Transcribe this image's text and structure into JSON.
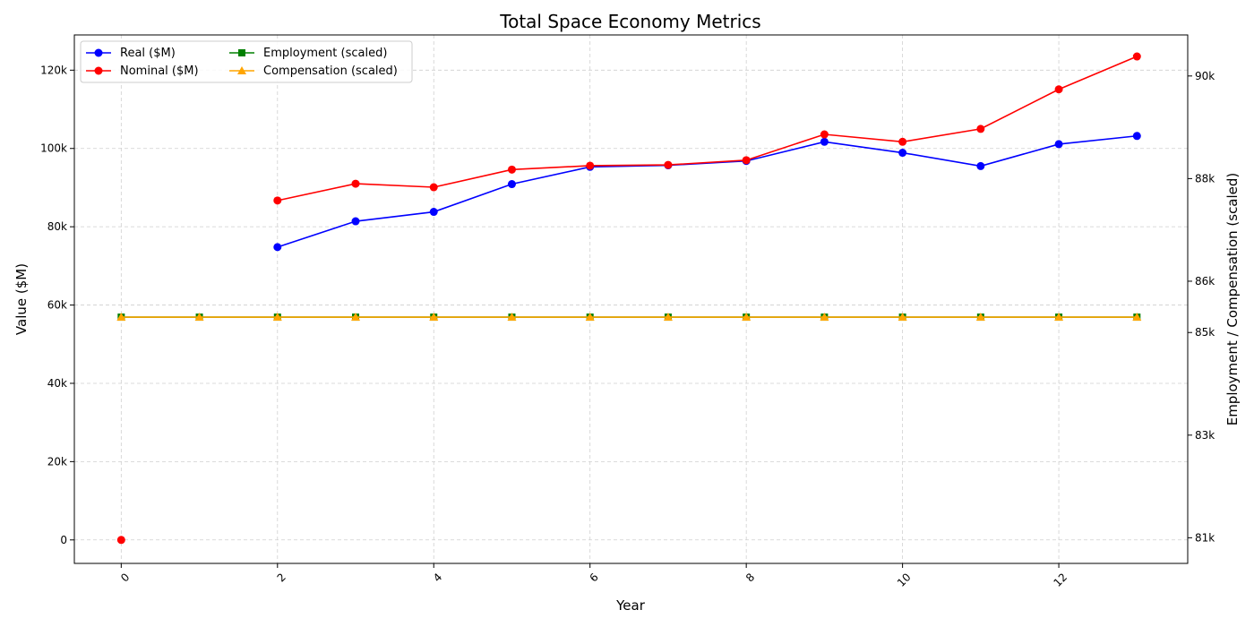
{
  "chart_data": {
    "type": "line",
    "title": "Total Space Economy Metrics",
    "xlabel": "Year",
    "ylabel": "Value ($M)",
    "y2label": "Employment / Compensation (scaled)",
    "xlim": [
      -0.6,
      13.65
    ],
    "ylim": [
      -6000,
      129000
    ],
    "y2lim": [
      80500,
      90800
    ],
    "x_ticks": [
      0,
      2,
      4,
      6,
      8,
      10,
      12
    ],
    "y_ticks": [
      0,
      20000,
      40000,
      60000,
      80000,
      100000,
      120000
    ],
    "y_tick_labels": [
      "0",
      "20k",
      "40k",
      "60k",
      "80k",
      "100k",
      "120k"
    ],
    "y2_ticks": [
      81000,
      83000,
      85000,
      86000,
      88000,
      90000
    ],
    "y2_tick_labels": [
      "81k",
      "83k",
      "85k",
      "86k",
      "88k",
      "90k"
    ],
    "grid": true,
    "legend_position": "top-left",
    "series": [
      {
        "name": "Real ($M)",
        "axis": "left",
        "color": "#0000ff",
        "marker": "circle",
        "points": [
          [
            2,
            74800
          ],
          [
            3,
            81400
          ],
          [
            4,
            83800
          ],
          [
            5,
            90900
          ],
          [
            6,
            95300
          ],
          [
            7,
            95700
          ],
          [
            8,
            96800
          ],
          [
            9,
            101700
          ],
          [
            10,
            98900
          ],
          [
            11,
            95500
          ],
          [
            12,
            101100
          ],
          [
            13,
            103200
          ]
        ]
      },
      {
        "name": "Nominal ($M)",
        "axis": "left",
        "color": "#ff0000",
        "marker": "circle",
        "points": [
          [
            0,
            0
          ],
          [
            2,
            86700
          ],
          [
            3,
            91000
          ],
          [
            4,
            90100
          ],
          [
            5,
            94600
          ],
          [
            6,
            95600
          ],
          [
            7,
            95800
          ],
          [
            8,
            97000
          ],
          [
            9,
            103600
          ],
          [
            10,
            101700
          ],
          [
            11,
            105000
          ],
          [
            12,
            115100
          ],
          [
            13,
            123500
          ]
        ]
      },
      {
        "name": "Employment (scaled)",
        "axis": "right",
        "color": "#008000",
        "marker": "square",
        "points": [
          [
            0,
            85300
          ],
          [
            1,
            85300
          ],
          [
            2,
            85300
          ],
          [
            3,
            85300
          ],
          [
            4,
            85300
          ],
          [
            5,
            85300
          ],
          [
            6,
            85300
          ],
          [
            7,
            85300
          ],
          [
            8,
            85300
          ],
          [
            9,
            85300
          ],
          [
            10,
            85300
          ],
          [
            11,
            85300
          ],
          [
            12,
            85300
          ],
          [
            13,
            85300
          ]
        ]
      },
      {
        "name": "Compensation (scaled)",
        "axis": "right",
        "color": "#ffa500",
        "marker": "triangle",
        "points": [
          [
            0,
            85300
          ],
          [
            1,
            85300
          ],
          [
            2,
            85300
          ],
          [
            3,
            85300
          ],
          [
            4,
            85300
          ],
          [
            5,
            85300
          ],
          [
            6,
            85300
          ],
          [
            7,
            85300
          ],
          [
            8,
            85300
          ],
          [
            9,
            85300
          ],
          [
            10,
            85300
          ],
          [
            11,
            85300
          ],
          [
            12,
            85300
          ],
          [
            13,
            85300
          ]
        ]
      }
    ]
  }
}
